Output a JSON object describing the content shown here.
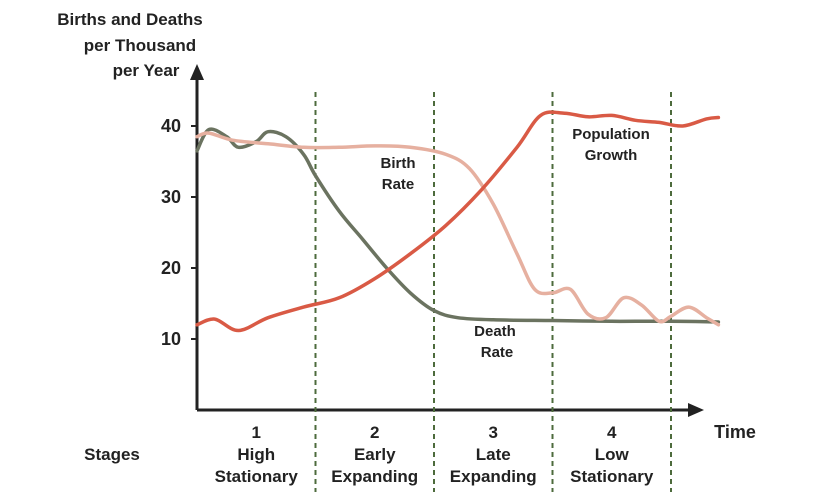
{
  "chart_data": {
    "type": "line",
    "ylabel": [
      "Births and Deaths",
      "per Thousand",
      "per Year"
    ],
    "xlabel": "Time",
    "stages_label": "Stages",
    "yticks": [
      10,
      20,
      30,
      40
    ],
    "ylim": [
      0,
      45
    ],
    "xlim": [
      0,
      4.3
    ],
    "grid": false,
    "stages": [
      {
        "number": "1",
        "name_line1": "High",
        "name_line2": "Stationary"
      },
      {
        "number": "2",
        "name_line1": "Early",
        "name_line2": "Expanding"
      },
      {
        "number": "3",
        "name_line1": "Late",
        "name_line2": "Expanding"
      },
      {
        "number": "4",
        "name_line1": "Low",
        "name_line2": "Stationary"
      }
    ],
    "stage_boundaries": [
      1,
      2,
      3,
      4
    ],
    "annotations": {
      "birth": [
        "Birth",
        "Rate"
      ],
      "death": [
        "Death",
        "Rate"
      ],
      "population": [
        "Population",
        "Growth"
      ]
    },
    "series": [
      {
        "key": "death",
        "color": "#6b7360",
        "x": [
          0,
          0.1,
          0.25,
          0.35,
          0.5,
          0.6,
          0.75,
          0.9,
          1.0,
          1.2,
          1.4,
          1.6,
          1.8,
          2.0,
          2.2,
          2.5,
          3.0,
          3.5,
          4.0,
          4.4
        ],
        "y": [
          36.5,
          39.5,
          38.5,
          37,
          37.8,
          39.2,
          38.5,
          36,
          33,
          28,
          24,
          20,
          16.5,
          14,
          13,
          12.7,
          12.6,
          12.5,
          12.5,
          12.4
        ]
      },
      {
        "key": "birth",
        "color": "#e6b0a0",
        "x": [
          0,
          0.1,
          0.3,
          0.6,
          0.9,
          1.2,
          1.5,
          1.8,
          2.1,
          2.3,
          2.5,
          2.7,
          2.85,
          3.0,
          3.15,
          3.3,
          3.45,
          3.6,
          3.75,
          3.9,
          4.0,
          4.15,
          4.3,
          4.4
        ],
        "y": [
          38.5,
          39,
          38,
          37.5,
          37,
          37,
          37.2,
          37,
          36,
          34,
          29,
          22,
          17,
          16.5,
          17,
          13.5,
          13,
          15.8,
          14.8,
          12.5,
          13.2,
          14.5,
          13,
          12
        ]
      },
      {
        "key": "population",
        "color": "#d95a45",
        "x": [
          0,
          0.15,
          0.35,
          0.6,
          0.9,
          1.2,
          1.5,
          1.8,
          2.1,
          2.4,
          2.7,
          2.9,
          3.1,
          3.3,
          3.5,
          3.7,
          3.9,
          4.1,
          4.3,
          4.4
        ],
        "y": [
          12,
          12.8,
          11.2,
          13,
          14.5,
          15.8,
          18.5,
          22,
          26,
          31,
          37,
          41.5,
          41.8,
          41.3,
          41.5,
          40.8,
          40.5,
          40,
          41,
          41.2
        ]
      }
    ]
  }
}
